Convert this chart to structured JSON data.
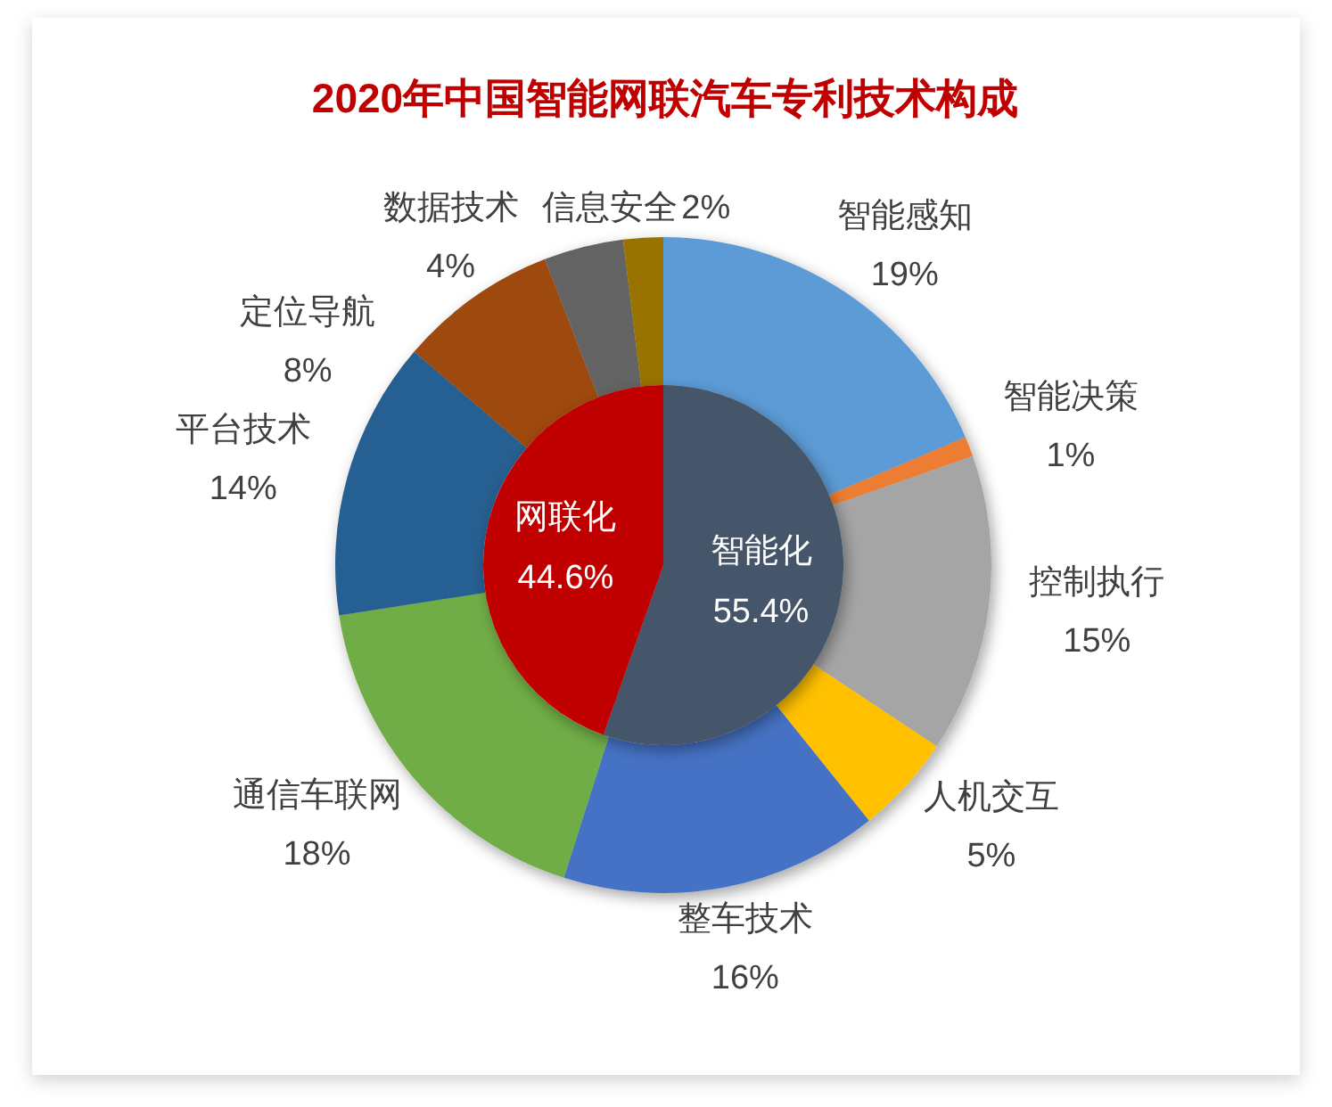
{
  "chart_data": [
    {
      "type": "donut",
      "title": "2020年中国智能网联汽车专利技术构成",
      "categories": [
        "智能感知",
        "智能决策",
        "控制执行",
        "人机交互",
        "整车技术",
        "通信车联网",
        "平台技术",
        "定位导航",
        "数据技术",
        "信息安全"
      ],
      "values": [
        19,
        1,
        15,
        5,
        16,
        18,
        14,
        8,
        4,
        2
      ],
      "value_labels": [
        "19%",
        "1%",
        "15%",
        "5%",
        "16%",
        "18%",
        "14%",
        "8%",
        "4%",
        "2%"
      ],
      "colors": [
        "#5b9bd5",
        "#ed7d31",
        "#a5a5a5",
        "#ffc000",
        "#4472c4",
        "#70ad47",
        "#255e91",
        "#9e480e",
        "#636363",
        "#997300"
      ]
    },
    {
      "type": "pie",
      "categories": [
        "智能化",
        "网联化"
      ],
      "values": [
        55.4,
        44.6
      ],
      "value_labels": [
        "55.4%",
        "44.6%"
      ],
      "colors": [
        "#44546a",
        "#c00000"
      ]
    }
  ]
}
